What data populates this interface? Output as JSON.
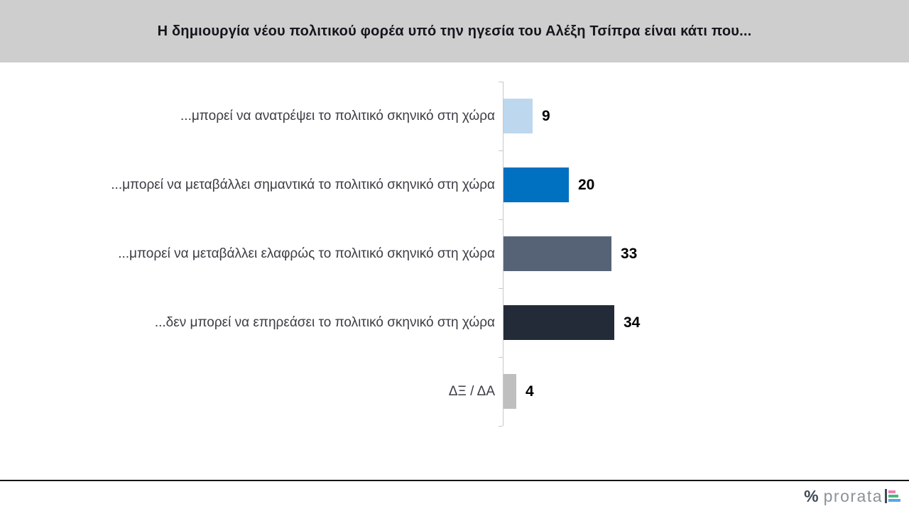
{
  "header": {
    "title": "Η δημιουργία νέου πολιτικού φορέα υπό την ηγεσία του Αλέξη Τσίπρα είναι κάτι που..."
  },
  "chart_data": {
    "type": "bar",
    "orientation": "horizontal",
    "title": "Η δημιουργία νέου πολιτικού φορέα υπό την ηγεσία του Αλέξη Τσίπρα είναι κάτι που...",
    "categories": [
      "...μπορεί να ανατρέψει το πολιτικό σκηνικό στη χώρα",
      "...μπορεί να μεταβάλλει σημαντικά το πολιτικό σκηνικό στη χώρα",
      "...μπορεί να μεταβάλλει ελαφρώς το πολιτικό σκηνικό στη χώρα",
      "...δεν μπορεί να επηρεάσει το πολιτικό σκηνικό στη χώρα",
      "ΔΞ / ΔΑ"
    ],
    "values": [
      9,
      20,
      33,
      34,
      4
    ],
    "bar_colors": [
      "#bdd7ee",
      "#0070c0",
      "#566377",
      "#242b38",
      "#bfbfbf"
    ],
    "value_labels": true,
    "value_label_position": "outside-end",
    "xlabel": "",
    "ylabel": "",
    "grid": false,
    "legend": "none",
    "axis_color": "#c8c8c8"
  },
  "footer": {
    "logo_percent": "%",
    "logo_text": "prorata",
    "logo_mark_colors": {
      "pink": "#ee7fb3",
      "green": "#4cb87d",
      "blue": "#55a9e2"
    }
  }
}
